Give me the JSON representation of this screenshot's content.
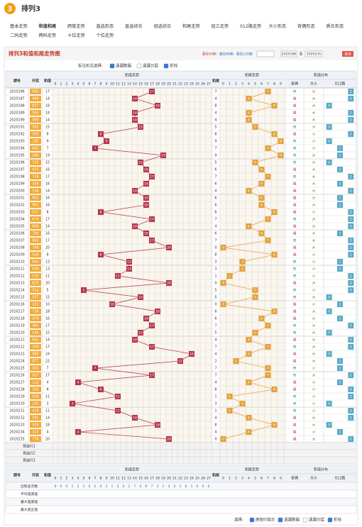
{
  "header": {
    "logo": "3",
    "title": "排列3"
  },
  "nav": [
    "基本走势",
    "和值和尾",
    "跨度走势",
    "直选形态",
    "直选综合",
    "组选综合",
    "和尾走势",
    "组三走势",
    "012路走势",
    "大小形态",
    "奇偶形态",
    "质合形态",
    "二码走势",
    "两码走势",
    "十位走势",
    "个位走势"
  ],
  "panel": {
    "title": "排列3和值和尾走势图",
    "periods": [
      "最近50期",
      "最近80期",
      "最近120期"
    ],
    "from": "2020186",
    "to_label": "至",
    "to": "2020235",
    "query": "查询"
  },
  "options": {
    "label": "标注形式选择:",
    "items": [
      "遗漏数据",
      "遗漏分层",
      "折线"
    ],
    "checked": [
      true,
      false,
      true
    ]
  },
  "table": {
    "head": {
      "period": "期号",
      "draw": "开奖",
      "sum": "和值",
      "sum_section": "和值走势",
      "tail": "和尾",
      "tail_section": "和尾走势",
      "dist_section": "和值分布",
      "oe": "奇偶",
      "bs": "大小",
      "route": "012路"
    },
    "sum_axis": [
      0,
      1,
      2,
      3,
      4,
      5,
      6,
      7,
      8,
      9,
      10,
      11,
      12,
      13,
      14,
      15,
      16,
      17,
      18,
      19,
      20,
      21,
      22,
      23,
      24,
      25,
      26,
      27
    ],
    "tail_axis": [
      0,
      1,
      2,
      3,
      4,
      5,
      6,
      7,
      8,
      9
    ],
    "route_axis": [
      0,
      1,
      2
    ],
    "rows": [
      [
        "2020186",
        "683",
        17,
        7,
        "奇",
        "大",
        2
      ],
      [
        "2020187",
        "086",
        14,
        4,
        "偶",
        "大",
        2
      ],
      [
        "2020188",
        "837",
        18,
        8,
        "偶",
        "大",
        0
      ],
      [
        "2020189",
        "950",
        14,
        4,
        "偶",
        "大",
        2
      ],
      [
        "2020190",
        "590",
        14,
        4,
        "偶",
        "大",
        2
      ],
      [
        "2020191",
        "906",
        15,
        5,
        "奇",
        "大",
        0
      ],
      [
        "2020192",
        "305",
        8,
        8,
        "偶",
        "小",
        2
      ],
      [
        "2020193",
        "180",
        9,
        9,
        "奇",
        "小",
        0
      ],
      [
        "2020194",
        "601",
        7,
        7,
        "奇",
        "小",
        1
      ],
      [
        "2020195",
        "586",
        19,
        9,
        "奇",
        "大",
        1
      ],
      [
        "2020196",
        "735",
        15,
        5,
        "奇",
        "大",
        0
      ],
      [
        "2020197",
        "475",
        16,
        6,
        "偶",
        "大",
        1
      ],
      [
        "2020198",
        "719",
        17,
        7,
        "奇",
        "大",
        2
      ],
      [
        "2020199",
        "358",
        16,
        6,
        "偶",
        "大",
        1
      ],
      [
        "2020200",
        "536",
        14,
        4,
        "偶",
        "大",
        2
      ],
      [
        "2020201",
        "862",
        16,
        6,
        "偶",
        "大",
        1
      ],
      [
        "2020202",
        "961",
        16,
        6,
        "偶",
        "大",
        1
      ],
      [
        "2020203",
        "017",
        8,
        8,
        "偶",
        "小",
        2
      ],
      [
        "2020204",
        "674",
        17,
        7,
        "奇",
        "大",
        2
      ],
      [
        "2020205",
        "806",
        14,
        4,
        "偶",
        "大",
        2
      ],
      [
        "2020206",
        "790",
        16,
        6,
        "偶",
        "大",
        1
      ],
      [
        "2020207",
        "863",
        17,
        7,
        "奇",
        "大",
        2
      ],
      [
        "2020208",
        "758",
        20,
        0,
        "偶",
        "大",
        2
      ],
      [
        "2020209",
        "026",
        8,
        8,
        "偶",
        "小",
        2
      ],
      [
        "2020210",
        "841",
        13,
        3,
        "奇",
        "小",
        1
      ],
      [
        "2020211",
        "094",
        13,
        3,
        "奇",
        "小",
        1
      ],
      [
        "2020212",
        "533",
        11,
        1,
        "奇",
        "小",
        2
      ],
      [
        "2020213",
        "839",
        20,
        0,
        "偶",
        "大",
        2
      ],
      [
        "2020214",
        "014",
        5,
        5,
        "奇",
        "小",
        2
      ],
      [
        "2020215",
        "537",
        15,
        5,
        "奇",
        "大",
        0
      ],
      [
        "2020216",
        "253",
        10,
        0,
        "偶",
        "小",
        1
      ],
      [
        "2020217",
        "738",
        18,
        8,
        "偶",
        "大",
        0
      ],
      [
        "2020218",
        "079",
        16,
        6,
        "偶",
        "大",
        1
      ],
      [
        "2020219",
        "485",
        17,
        7,
        "奇",
        "大",
        2
      ],
      [
        "2020220",
        "546",
        15,
        5,
        "奇",
        "大",
        0
      ],
      [
        "2020221",
        "662",
        14,
        4,
        "偶",
        "大",
        2
      ],
      [
        "2020222",
        "269",
        17,
        7,
        "奇",
        "大",
        2
      ],
      [
        "2020223",
        "888",
        24,
        4,
        "偶",
        "大",
        0
      ],
      [
        "2020224",
        "877",
        22,
        2,
        "偶",
        "大",
        1
      ],
      [
        "2020225",
        "403",
        7,
        7,
        "奇",
        "小",
        1
      ],
      [
        "2020226",
        "917",
        17,
        7,
        "奇",
        "大",
        2
      ],
      [
        "2020227",
        "112",
        4,
        4,
        "偶",
        "小",
        1
      ],
      [
        "2020228",
        "305",
        8,
        8,
        "偶",
        "小",
        2
      ],
      [
        "2020229",
        "029",
        11,
        1,
        "奇",
        "小",
        2
      ],
      [
        "2020230",
        "201",
        3,
        3,
        "奇",
        "小",
        0
      ],
      [
        "2020231",
        "416",
        11,
        1,
        "奇",
        "小",
        2
      ],
      [
        "2020232",
        "581",
        14,
        4,
        "偶",
        "大",
        2
      ],
      [
        "2020233",
        "918",
        18,
        8,
        "偶",
        "大",
        0
      ],
      [
        "2020234",
        "103",
        4,
        4,
        "偶",
        "小",
        1
      ],
      [
        "2020235",
        "776",
        20,
        0,
        "偶",
        "大",
        2
      ]
    ],
    "preselect": [
      "预选行1",
      "预选行2",
      "预选行3"
    ],
    "stats": [
      {
        "label": "出现总次数",
        "values": [
          0,
          0,
          0,
          1,
          2,
          1,
          0,
          2,
          4,
          1,
          1,
          3,
          0,
          2,
          7,
          4,
          6,
          7,
          3,
          1,
          3,
          0,
          1,
          0,
          1,
          0,
          0,
          0
        ]
      },
      {
        "label": "平均遗漏值"
      },
      {
        "label": "最大遗漏值"
      },
      {
        "label": "最大连出值"
      }
    ]
  },
  "footer": {
    "label": "选择:",
    "items": [
      "原始行提示",
      "遗漏数据",
      "遗漏分层",
      "折线"
    ],
    "checked": [
      true,
      true,
      false,
      true
    ]
  }
}
